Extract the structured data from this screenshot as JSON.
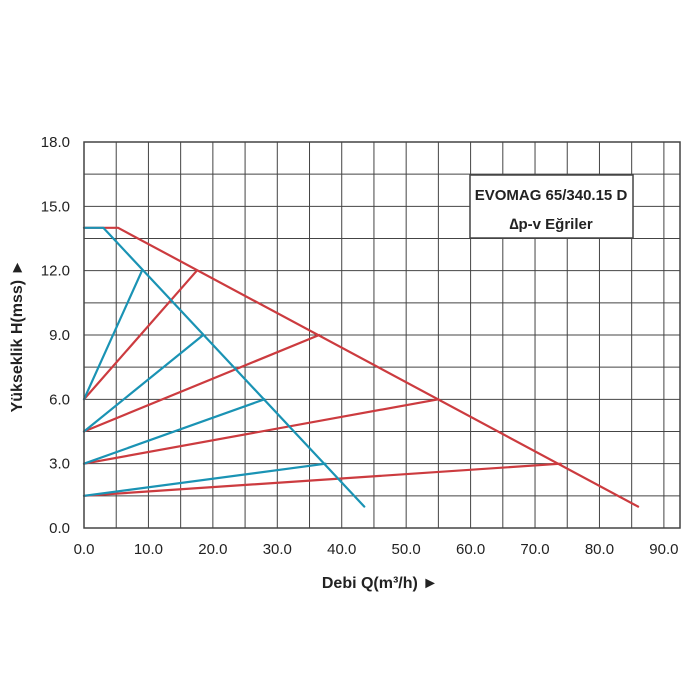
{
  "chart_data": {
    "type": "line",
    "xlabel": "Debi Q(m³/h) ►",
    "ylabel": "Yükseklik H(mss) ►",
    "xlim": [
      0,
      92.5
    ],
    "ylim": [
      0,
      18
    ],
    "x_ticks": [
      "0.0",
      "10.0",
      "20.0",
      "30.0",
      "40.0",
      "50.0",
      "60.0",
      "70.0",
      "80.0",
      "90.0"
    ],
    "y_ticks": [
      "0.0",
      "3.0",
      "6.0",
      "9.0",
      "12.0",
      "15.0",
      "18.0"
    ],
    "grid": true,
    "legend_box": {
      "line1": "EVOMAG 65/340.15 D",
      "line2": "∆p-v Eğriler"
    },
    "colors": {
      "red": "#cc3b3f",
      "blue": "#1a93b4",
      "grid": "#444444"
    },
    "series": [
      {
        "color": "red",
        "points": [
          [
            0,
            14
          ],
          [
            5.3,
            14
          ],
          [
            86,
            1
          ]
        ]
      },
      {
        "color": "red",
        "points": [
          [
            0,
            6
          ],
          [
            17.5,
            12
          ]
        ]
      },
      {
        "color": "red",
        "points": [
          [
            0,
            4.5
          ],
          [
            36.5,
            9
          ]
        ]
      },
      {
        "color": "red",
        "points": [
          [
            0,
            3
          ],
          [
            55,
            6
          ]
        ]
      },
      {
        "color": "red",
        "points": [
          [
            0,
            1.5
          ],
          [
            74,
            3
          ]
        ]
      },
      {
        "color": "blue",
        "points": [
          [
            0,
            14
          ],
          [
            3,
            14
          ],
          [
            43.5,
            1
          ]
        ]
      },
      {
        "color": "blue",
        "points": [
          [
            0,
            6
          ],
          [
            9,
            12
          ]
        ]
      },
      {
        "color": "blue",
        "points": [
          [
            0,
            4.5
          ],
          [
            18.5,
            9
          ]
        ]
      },
      {
        "color": "blue",
        "points": [
          [
            0,
            3
          ],
          [
            28,
            6
          ]
        ]
      },
      {
        "color": "blue",
        "points": [
          [
            0,
            1.5
          ],
          [
            37.5,
            3
          ]
        ]
      }
    ]
  }
}
